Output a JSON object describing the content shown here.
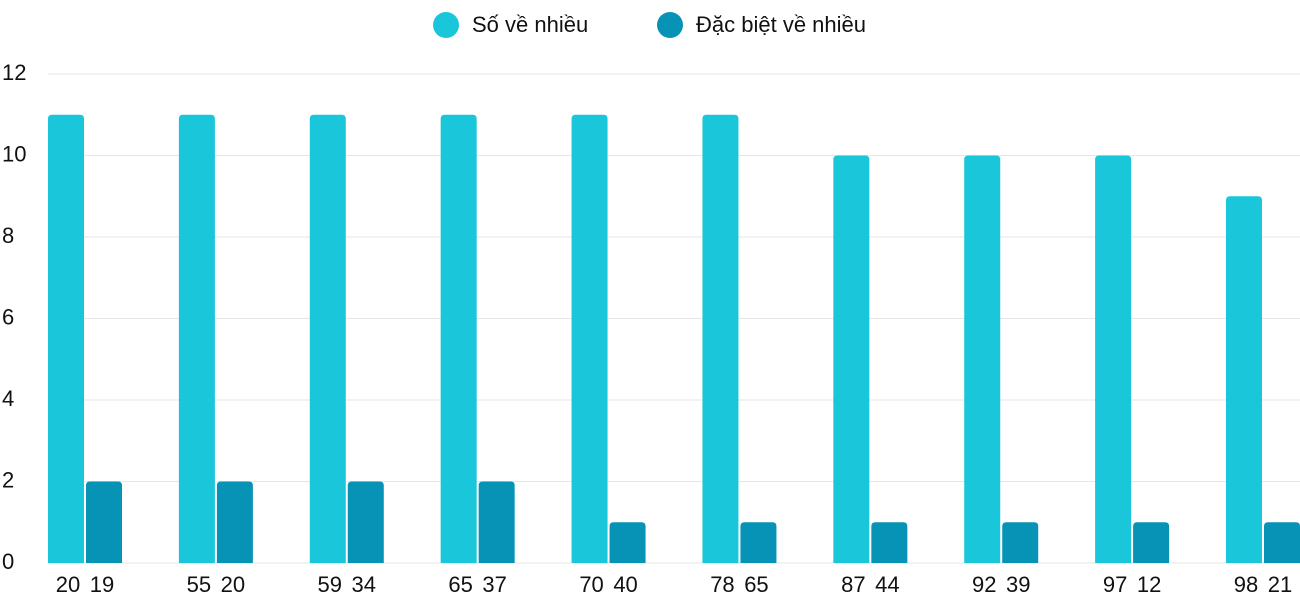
{
  "chart_data": {
    "type": "bar",
    "series": [
      {
        "name": "Số về nhiều",
        "color": "#1ac6da",
        "values": [
          11,
          11,
          11,
          11,
          11,
          11,
          10,
          10,
          10,
          9
        ],
        "labels": [
          "20",
          "55",
          "59",
          "65",
          "70",
          "78",
          "87",
          "92",
          "97",
          "98"
        ]
      },
      {
        "name": "Đặc biệt về nhiều",
        "color": "#0693b6",
        "values": [
          2,
          2,
          2,
          2,
          1,
          1,
          1,
          1,
          1,
          1
        ],
        "labels": [
          "19",
          "20",
          "34",
          "37",
          "40",
          "65",
          "44",
          "39",
          "12",
          "21"
        ]
      }
    ],
    "ylim": [
      0,
      12
    ],
    "yticks": [
      0,
      2,
      4,
      6,
      8,
      10,
      12
    ],
    "grid": true
  }
}
